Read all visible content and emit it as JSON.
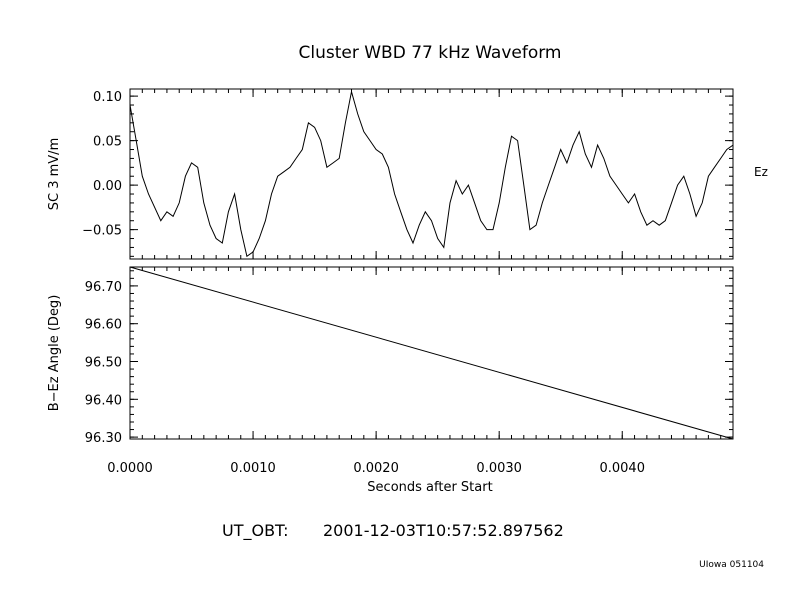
{
  "title": "Cluster WBD 77 kHz Waveform",
  "utc_label": "UT_OBT:",
  "utc_value": "2001-12-03T10:57:52.897562",
  "credit": "UIowa 051104",
  "chart_data": [
    {
      "type": "line",
      "panel": "waveform",
      "ylabel": "SC 3 mV/m",
      "series_label": "Ez",
      "xlim": [
        0,
        0.0049
      ],
      "ylim": [
        -0.083,
        0.108
      ],
      "yticks": [
        0.1,
        0.05,
        0.0,
        -0.05
      ],
      "ytick_labels": [
        "0.10",
        "0.05",
        "0.00",
        "−0.05"
      ],
      "x": [
        0,
        5e-05,
        0.0001,
        0.00015,
        0.00025,
        0.0003,
        0.00035,
        0.0004,
        0.00045,
        0.0005,
        0.00055,
        0.0006,
        0.00065,
        0.0007,
        0.00075,
        0.0008,
        0.00085,
        0.0009,
        0.00095,
        0.001,
        0.00105,
        0.0011,
        0.00115,
        0.0012,
        0.00125,
        0.0013,
        0.00135,
        0.0014,
        0.00145,
        0.0015,
        0.00155,
        0.0016,
        0.00165,
        0.0017,
        0.00175,
        0.0018,
        0.00185,
        0.0019,
        0.00195,
        0.002,
        0.00205,
        0.0021,
        0.00215,
        0.0022,
        0.00225,
        0.0023,
        0.00235,
        0.0024,
        0.00245,
        0.0025,
        0.00255,
        0.0026,
        0.00265,
        0.0027,
        0.00275,
        0.0028,
        0.00285,
        0.0029,
        0.00295,
        0.003,
        0.00305,
        0.0031,
        0.00315,
        0.0032,
        0.00325,
        0.0033,
        0.00335,
        0.0034,
        0.00345,
        0.0035,
        0.00355,
        0.0036,
        0.00365,
        0.0037,
        0.00375,
        0.0038,
        0.00385,
        0.0039,
        0.00395,
        0.004,
        0.00405,
        0.0041,
        0.00415,
        0.0042,
        0.00425,
        0.0043,
        0.00435,
        0.0044,
        0.00445,
        0.0045,
        0.00455,
        0.0046,
        0.00465,
        0.0047,
        0.00475,
        0.0048,
        0.00485,
        0.0049
      ],
      "y": [
        0.09,
        0.05,
        0.01,
        -0.01,
        -0.04,
        -0.03,
        -0.035,
        -0.02,
        0.01,
        0.025,
        0.02,
        -0.02,
        -0.045,
        -0.06,
        -0.065,
        -0.03,
        -0.01,
        -0.05,
        -0.08,
        -0.075,
        -0.06,
        -0.04,
        -0.01,
        0.01,
        0.015,
        0.02,
        0.03,
        0.04,
        0.07,
        0.065,
        0.05,
        0.02,
        0.025,
        0.03,
        0.07,
        0.105,
        0.08,
        0.06,
        0.05,
        0.04,
        0.035,
        0.02,
        -0.01,
        -0.03,
        -0.05,
        -0.065,
        -0.045,
        -0.03,
        -0.04,
        -0.06,
        -0.07,
        -0.02,
        0.005,
        -0.01,
        0.0,
        -0.02,
        -0.04,
        -0.05,
        -0.05,
        -0.02,
        0.02,
        0.055,
        0.05,
        0.0,
        -0.05,
        -0.045,
        -0.02,
        0.0,
        0.02,
        0.04,
        0.025,
        0.045,
        0.06,
        0.035,
        0.02,
        0.045,
        0.03,
        0.01,
        0.0,
        -0.01,
        -0.02,
        -0.01,
        -0.03,
        -0.045,
        -0.04,
        -0.045,
        -0.04,
        -0.02,
        0.0,
        0.01,
        -0.01,
        -0.035,
        -0.02,
        0.01,
        0.02,
        0.03,
        0.04,
        0.045
      ]
    },
    {
      "type": "line",
      "panel": "angle",
      "ylabel": "B−Ez Angle (Deg)",
      "xlabel": "Seconds after Start",
      "xlim": [
        0,
        0.0049
      ],
      "ylim": [
        96.295,
        96.75
      ],
      "yticks": [
        96.7,
        96.6,
        96.5,
        96.4,
        96.3
      ],
      "ytick_labels": [
        "96.70",
        "96.60",
        "96.50",
        "96.40",
        "96.30"
      ],
      "xticks": [
        0,
        0.001,
        0.002,
        0.003,
        0.004
      ],
      "xtick_labels": [
        "0.0000",
        "0.0010",
        "0.0020",
        "0.0030",
        "0.0040"
      ],
      "x": [
        0,
        0.0049
      ],
      "y": [
        96.75,
        96.295
      ]
    }
  ]
}
